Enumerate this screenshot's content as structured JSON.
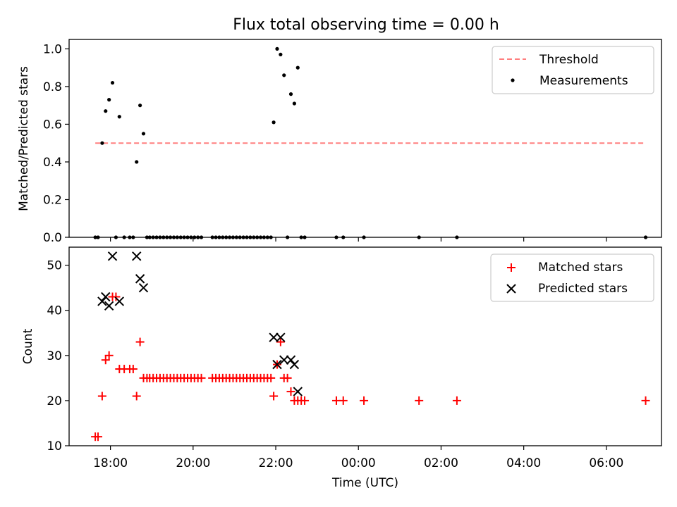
{
  "figure": {
    "title": "Flux total observing time = 0.00 h"
  },
  "chart_data": [
    {
      "type": "scatter",
      "ylabel": "Matched/Predicted stars",
      "xlabel": "",
      "xlim": [
        "17:00",
        "07:20"
      ],
      "ylim": [
        0,
        1.05
      ],
      "yticks": [
        0.0,
        0.2,
        0.4,
        0.6,
        0.8,
        1.0
      ],
      "ytick_labels": [
        "0.0",
        "0.2",
        "0.4",
        "0.6",
        "0.8",
        "1.0"
      ],
      "xticks": [
        "18:00",
        "20:00",
        "22:00",
        "00:00",
        "02:00",
        "04:00",
        "06:00"
      ],
      "grid": false,
      "legend_position": "top-right",
      "series": [
        {
          "name": "Threshold",
          "kind": "dashed-line",
          "color": "#ff7f7f",
          "x": [
            "17:38",
            "06:57"
          ],
          "y": [
            0.5,
            0.5
          ]
        },
        {
          "name": "Measurements",
          "kind": "dots",
          "color": "#000000",
          "points": [
            [
              "17:38",
              0
            ],
            [
              "17:42",
              0
            ],
            [
              "17:48",
              0.5
            ],
            [
              "17:53",
              0.67
            ],
            [
              "17:58",
              0.73
            ],
            [
              "18:03",
              0.82
            ],
            [
              "18:08",
              0
            ],
            [
              "18:13",
              0.64
            ],
            [
              "18:20",
              0
            ],
            [
              "18:28",
              0
            ],
            [
              "18:33",
              0
            ],
            [
              "18:38",
              0.4
            ],
            [
              "18:43",
              0.7
            ],
            [
              "18:48",
              0.55
            ],
            [
              "18:53",
              0
            ],
            [
              "18:57",
              0
            ],
            [
              "19:02",
              0
            ],
            [
              "19:07",
              0
            ],
            [
              "19:12",
              0
            ],
            [
              "19:17",
              0
            ],
            [
              "19:22",
              0
            ],
            [
              "19:27",
              0
            ],
            [
              "19:32",
              0
            ],
            [
              "19:37",
              0
            ],
            [
              "19:42",
              0
            ],
            [
              "19:47",
              0
            ],
            [
              "19:52",
              0
            ],
            [
              "19:57",
              0
            ],
            [
              "20:02",
              0
            ],
            [
              "20:07",
              0
            ],
            [
              "20:12",
              0
            ],
            [
              "20:28",
              0
            ],
            [
              "20:33",
              0
            ],
            [
              "20:38",
              0
            ],
            [
              "20:43",
              0
            ],
            [
              "20:48",
              0
            ],
            [
              "20:53",
              0
            ],
            [
              "20:58",
              0
            ],
            [
              "21:03",
              0
            ],
            [
              "21:08",
              0
            ],
            [
              "21:13",
              0
            ],
            [
              "21:18",
              0
            ],
            [
              "21:23",
              0
            ],
            [
              "21:28",
              0
            ],
            [
              "21:33",
              0
            ],
            [
              "21:38",
              0
            ],
            [
              "21:43",
              0
            ],
            [
              "21:48",
              0
            ],
            [
              "21:53",
              0
            ],
            [
              "21:57",
              0.61
            ],
            [
              "22:02",
              1.0
            ],
            [
              "22:07",
              0.97
            ],
            [
              "22:12",
              0.86
            ],
            [
              "22:17",
              0
            ],
            [
              "22:22",
              0.76
            ],
            [
              "22:27",
              0.71
            ],
            [
              "22:32",
              0.9
            ],
            [
              "22:37",
              0
            ],
            [
              "22:42",
              0
            ],
            [
              "23:28",
              0
            ],
            [
              "23:38",
              0
            ],
            [
              "00:08",
              0
            ],
            [
              "01:28",
              0
            ],
            [
              "02:23",
              0
            ],
            [
              "06:57",
              0
            ]
          ]
        }
      ]
    },
    {
      "type": "scatter",
      "ylabel": "Count",
      "xlabel": "Time (UTC)",
      "xlim": [
        "17:00",
        "07:20"
      ],
      "ylim": [
        10,
        54
      ],
      "yticks": [
        10,
        20,
        30,
        40,
        50
      ],
      "ytick_labels": [
        "10",
        "20",
        "30",
        "40",
        "50"
      ],
      "xticks": [
        "18:00",
        "20:00",
        "22:00",
        "00:00",
        "02:00",
        "04:00",
        "06:00"
      ],
      "grid": false,
      "legend_position": "top-right",
      "series": [
        {
          "name": "Matched stars",
          "kind": "plus",
          "color": "#ff0000",
          "points": [
            [
              "17:38",
              12
            ],
            [
              "17:42",
              12
            ],
            [
              "17:48",
              21
            ],
            [
              "17:53",
              29
            ],
            [
              "17:58",
              30
            ],
            [
              "18:03",
              43
            ],
            [
              "18:08",
              43
            ],
            [
              "18:13",
              27
            ],
            [
              "18:20",
              27
            ],
            [
              "18:28",
              27
            ],
            [
              "18:33",
              27
            ],
            [
              "18:38",
              21
            ],
            [
              "18:43",
              33
            ],
            [
              "18:48",
              25
            ],
            [
              "18:53",
              25
            ],
            [
              "18:57",
              25
            ],
            [
              "19:02",
              25
            ],
            [
              "19:07",
              25
            ],
            [
              "19:12",
              25
            ],
            [
              "19:17",
              25
            ],
            [
              "19:22",
              25
            ],
            [
              "19:27",
              25
            ],
            [
              "19:32",
              25
            ],
            [
              "19:37",
              25
            ],
            [
              "19:42",
              25
            ],
            [
              "19:47",
              25
            ],
            [
              "19:52",
              25
            ],
            [
              "19:57",
              25
            ],
            [
              "20:02",
              25
            ],
            [
              "20:07",
              25
            ],
            [
              "20:12",
              25
            ],
            [
              "20:28",
              25
            ],
            [
              "20:33",
              25
            ],
            [
              "20:38",
              25
            ],
            [
              "20:43",
              25
            ],
            [
              "20:48",
              25
            ],
            [
              "20:53",
              25
            ],
            [
              "20:58",
              25
            ],
            [
              "21:03",
              25
            ],
            [
              "21:08",
              25
            ],
            [
              "21:13",
              25
            ],
            [
              "21:18",
              25
            ],
            [
              "21:23",
              25
            ],
            [
              "21:28",
              25
            ],
            [
              "21:33",
              25
            ],
            [
              "21:38",
              25
            ],
            [
              "21:43",
              25
            ],
            [
              "21:48",
              25
            ],
            [
              "21:53",
              25
            ],
            [
              "21:57",
              21
            ],
            [
              "22:02",
              28
            ],
            [
              "22:07",
              33
            ],
            [
              "22:12",
              25
            ],
            [
              "22:17",
              25
            ],
            [
              "22:22",
              22
            ],
            [
              "22:27",
              20
            ],
            [
              "22:32",
              20
            ],
            [
              "22:37",
              20
            ],
            [
              "22:42",
              20
            ],
            [
              "23:28",
              20
            ],
            [
              "23:38",
              20
            ],
            [
              "00:08",
              20
            ],
            [
              "01:28",
              20
            ],
            [
              "02:23",
              20
            ],
            [
              "06:57",
              20
            ]
          ]
        },
        {
          "name": "Predicted stars",
          "kind": "cross",
          "color": "#000000",
          "points": [
            [
              "17:48",
              42
            ],
            [
              "17:53",
              43
            ],
            [
              "17:58",
              41
            ],
            [
              "18:03",
              52
            ],
            [
              "18:13",
              42
            ],
            [
              "18:38",
              52
            ],
            [
              "18:43",
              47
            ],
            [
              "18:48",
              45
            ],
            [
              "21:57",
              34
            ],
            [
              "22:02",
              28
            ],
            [
              "22:07",
              34
            ],
            [
              "22:12",
              29
            ],
            [
              "22:22",
              29
            ],
            [
              "22:27",
              28
            ],
            [
              "22:32",
              22
            ]
          ]
        }
      ]
    }
  ]
}
